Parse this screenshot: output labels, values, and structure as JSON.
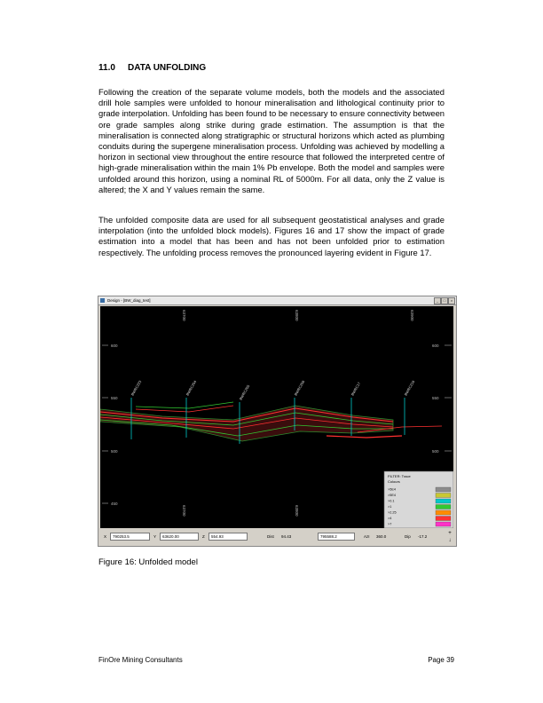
{
  "section": {
    "number": "11.0",
    "title": "DATA UNFOLDING"
  },
  "paragraphs": [
    "Following the creation of the separate volume models, both the models and the associated drill hole samples were unfolded to honour mineralisation and lithological continuity prior to grade interpolation.  Unfolding has been found to be necessary to ensure connectivity between ore grade samples along strike during grade estimation. The assumption is that the mineralisation is connected along stratigraphic or structural horizons which acted as plumbing conduits during the supergene mineralisation process.  Unfolding was achieved by modelling a horizon in sectional view throughout the entire resource that followed the interpreted centre of high-grade mineralisation within the main 1% Pb envelope.  Both the model and samples were unfolded around this horizon, using a nominal RL of 5000m.  For all data, only the Z value is altered; the X and Y values remain the same.",
    "The unfolded composite data are used for all subsequent geostatistical analyses and grade interpolation (into the unfolded block models).  Figures 16 and 17 show the impact of grade estimation into a model that has been and has not been unfolded prior to estimation respectively.  The unfolding process removes the pronounced layering evident in Figure 17."
  ],
  "figure": {
    "window_title": "Design - [BW_diag_test]",
    "window_buttons": [
      "_",
      "□",
      "×"
    ],
    "rl_labels_left": [
      "600",
      "550",
      "500",
      "450"
    ],
    "rl_labels_right": [
      "600",
      "550",
      "500"
    ],
    "easting_labels_top": [
      "63700",
      "63800",
      "63900"
    ],
    "easting_labels_bottom": [
      "63700",
      "63800"
    ],
    "drillholes": [
      "BWRC223",
      "BWRC204",
      "BWRC205",
      "BWRC206",
      "BWRC17",
      "BWRC216"
    ],
    "legend": {
      "title": "FILTER: Trace",
      "subtitle": "Colours",
      "items": [
        {
          "label": ">5E4",
          "color": "#8c8c8c"
        },
        {
          "label": ">5E4",
          "color": "#c8c832"
        },
        {
          "label": ">0.1",
          "color": "#00c8c8"
        },
        {
          "label": ">1",
          "color": "#32c832"
        },
        {
          "label": ">2.25",
          "color": "#ff8c00"
        },
        {
          "label": ">4",
          "color": "#ff3232"
        },
        {
          "label": ">7",
          "color": "#ff32c8"
        }
      ]
    },
    "statusbar": {
      "x_label": "X",
      "x_value": "790253.5",
      "y_label": "Y",
      "y_value": "63620.00",
      "z_label": "Z",
      "z_value": "554.93",
      "dist_label": "Dist",
      "dist_value": "94.43",
      "dist_box": "795588.2",
      "azi_label": "AzI",
      "azi_value": "360.0",
      "dip_label": "Dip",
      "dip_value": "-17.2"
    },
    "scroll_up": "+",
    "scroll_down": "↓"
  },
  "caption": "Figure 16: Unfolded model",
  "footer": {
    "company": "FinOre Mining Consultants",
    "page": "Page 39"
  }
}
